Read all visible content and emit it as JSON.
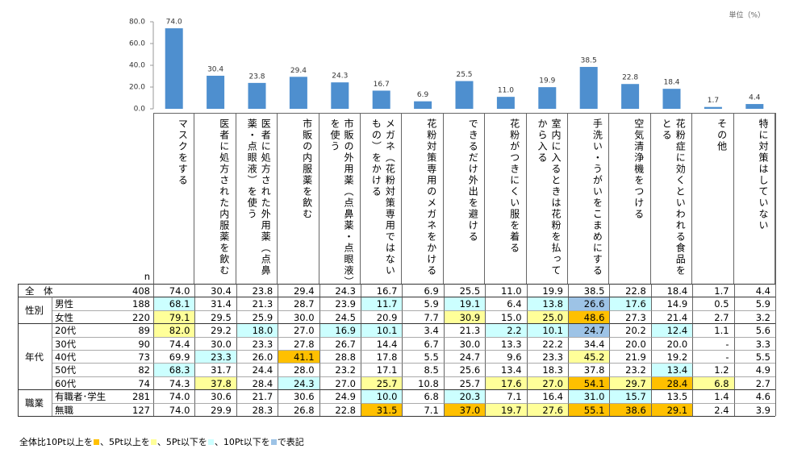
{
  "chart_data": {
    "type": "bar",
    "unit": "単位（%）",
    "color": "#4e8fcf",
    "categories": [
      "マスクをする",
      "医者に処方された内服薬を飲む",
      "医者に処方された外用薬（点鼻薬・点眼液）を使う",
      "市販の内服薬を飲む",
      "市販の外用薬（点鼻薬・点眼液）を使う",
      "メガネ（花粉対策専用ではないもの）をかける",
      "花粉対策専用のメガネをかける",
      "できるだけ外出を避ける",
      "花粉がつきにくい服を着る",
      "室内に入るときは花粉を払ってから入る",
      "手洗い・うがいをこまめにする",
      "空気清浄機をつける",
      "花粉症に効くといわれる食品をとる",
      "その他",
      "特に対策はしていない"
    ],
    "values": [
      74.0,
      30.4,
      23.8,
      29.4,
      24.3,
      16.7,
      6.9,
      25.5,
      11.0,
      19.9,
      38.5,
      22.8,
      18.4,
      1.7,
      4.4
    ],
    "value_labels": [
      "74.0",
      "30.4",
      "23.8",
      "29.4",
      "24.3",
      "16.7",
      "6.9",
      "25.5",
      "11.0",
      "19.9",
      "38.5",
      "22.8",
      "18.4",
      "1.7",
      "4.4"
    ],
    "ylim": [
      0,
      80
    ],
    "yticks": [
      {
        "value": 0,
        "label": "0.0"
      },
      {
        "value": 20,
        "label": "20.0"
      },
      {
        "value": 40,
        "label": "40.0"
      },
      {
        "value": 60,
        "label": "60.0"
      },
      {
        "value": 80,
        "label": "80.0"
      }
    ]
  },
  "table": {
    "n_header": "n",
    "groups": [
      {
        "name": "全　体",
        "rows": [
          {
            "n": 408,
            "values": [
              "74.0",
              "30.4",
              "23.8",
              "29.4",
              "24.3",
              "16.7",
              "6.9",
              "25.5",
              "11.0",
              "19.9",
              "38.5",
              "22.8",
              "18.4",
              "1.7",
              "4.4"
            ]
          }
        ]
      },
      {
        "name": "性別",
        "rows": [
          {
            "label": "男性",
            "n": 188,
            "values": [
              "68.1",
              "31.4",
              "21.3",
              "28.7",
              "23.9",
              "11.7",
              "5.9",
              "19.1",
              "6.4",
              "13.8",
              "26.6",
              "17.6",
              "14.9",
              "0.5",
              "5.9"
            ]
          },
          {
            "label": "女性",
            "n": 220,
            "values": [
              "79.1",
              "29.5",
              "25.9",
              "30.0",
              "24.5",
              "20.9",
              "7.7",
              "30.9",
              "15.0",
              "25.0",
              "48.6",
              "27.3",
              "21.4",
              "2.7",
              "3.2"
            ]
          }
        ]
      },
      {
        "name": "年代",
        "rows": [
          {
            "label": "20代",
            "n": 89,
            "values": [
              "82.0",
              "29.2",
              "18.0",
              "27.0",
              "16.9",
              "10.1",
              "3.4",
              "21.3",
              "2.2",
              "10.1",
              "24.7",
              "20.2",
              "12.4",
              "1.1",
              "5.6"
            ]
          },
          {
            "label": "30代",
            "n": 90,
            "values": [
              "74.4",
              "30.0",
              "23.3",
              "27.8",
              "26.7",
              "14.4",
              "6.7",
              "30.0",
              "13.3",
              "22.2",
              "34.4",
              "20.0",
              "20.0",
              "-",
              "3.3"
            ]
          },
          {
            "label": "40代",
            "n": 73,
            "values": [
              "69.9",
              "23.3",
              "26.0",
              "41.1",
              "28.8",
              "17.8",
              "5.5",
              "24.7",
              "9.6",
              "23.3",
              "45.2",
              "21.9",
              "19.2",
              "-",
              "5.5"
            ]
          },
          {
            "label": "50代",
            "n": 82,
            "values": [
              "68.3",
              "31.7",
              "24.4",
              "28.0",
              "23.2",
              "17.1",
              "8.5",
              "25.6",
              "13.4",
              "18.3",
              "37.8",
              "23.2",
              "13.4",
              "1.2",
              "4.9"
            ]
          },
          {
            "label": "60代",
            "n": 74,
            "values": [
              "74.3",
              "37.8",
              "28.4",
              "24.3",
              "27.0",
              "25.7",
              "10.8",
              "25.7",
              "17.6",
              "27.0",
              "54.1",
              "29.7",
              "28.4",
              "6.8",
              "2.7"
            ]
          }
        ]
      },
      {
        "name": "職業",
        "rows": [
          {
            "label": "有職者･学生",
            "n": 281,
            "values": [
              "74.0",
              "30.6",
              "21.7",
              "30.6",
              "24.9",
              "10.0",
              "6.8",
              "20.3",
              "7.1",
              "16.4",
              "31.0",
              "15.7",
              "13.5",
              "1.4",
              "4.6"
            ]
          },
          {
            "label": "無職",
            "n": 127,
            "values": [
              "74.0",
              "29.9",
              "28.3",
              "26.8",
              "22.8",
              "31.5",
              "7.1",
              "37.0",
              "19.7",
              "27.6",
              "55.1",
              "38.6",
              "29.1",
              "2.4",
              "3.9"
            ]
          }
        ]
      }
    ]
  },
  "legend": {
    "parts": [
      "全体比10Pt以上を",
      "、5Pt以上を",
      "、5Pt以下を",
      "、10Pt以下を",
      "で表記"
    ],
    "rules": [
      {
        "min": 10,
        "color": "#ffc000"
      },
      {
        "min": 5,
        "color": "#ffff99"
      },
      {
        "max": -5,
        "color": "#ccffff"
      },
      {
        "max": -10,
        "color": "#9dc3e6"
      }
    ]
  }
}
